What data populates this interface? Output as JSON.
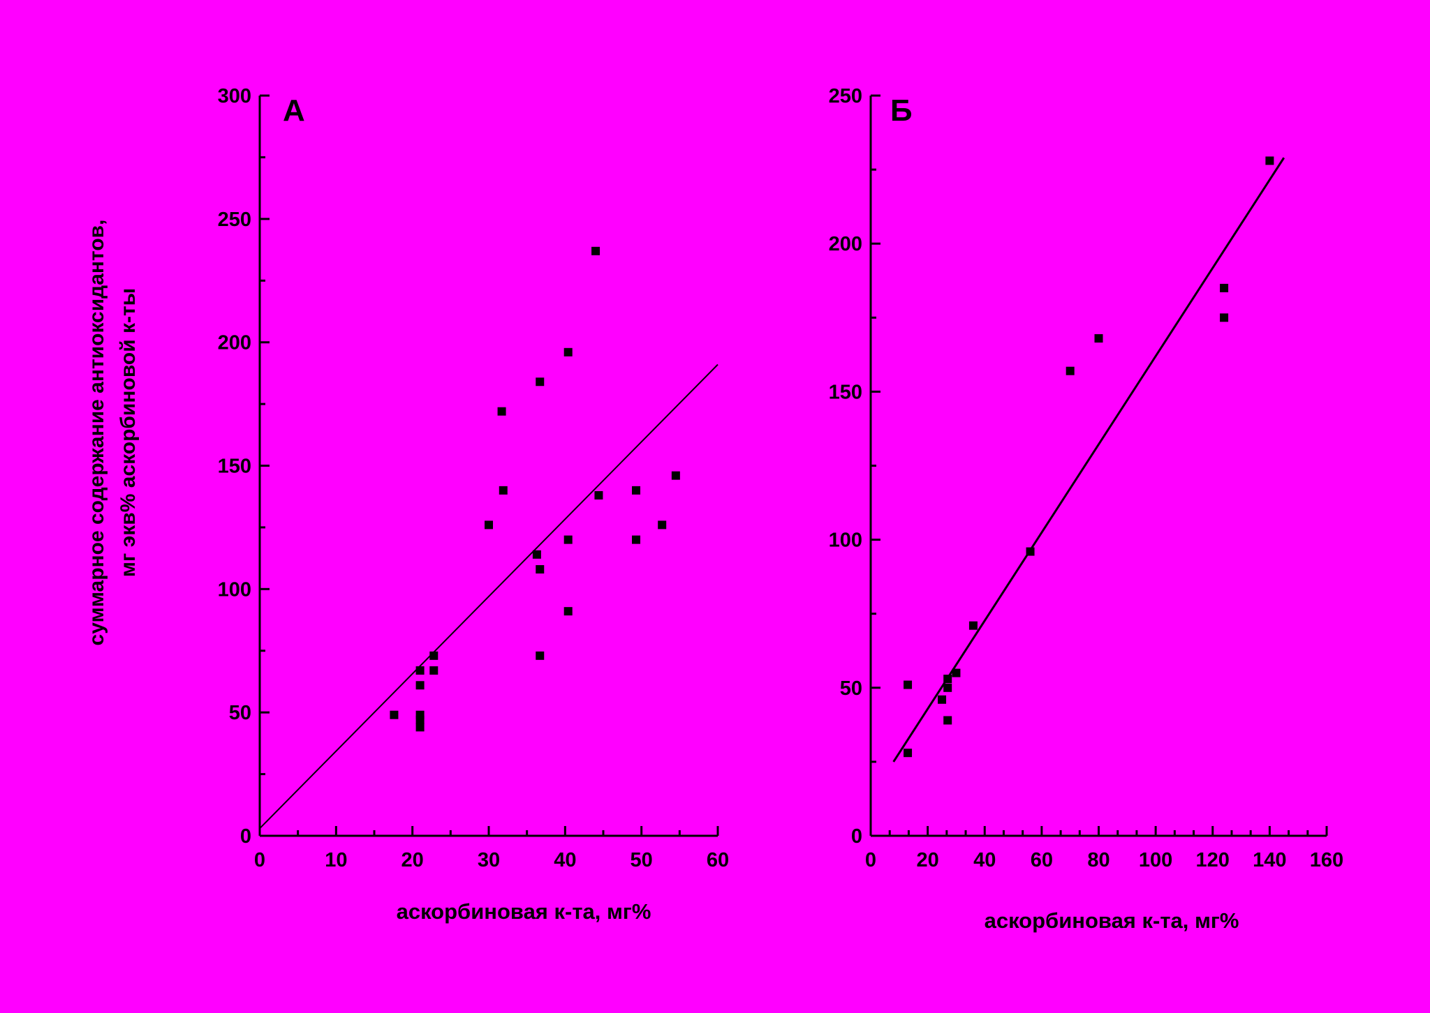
{
  "background_color": "#FF00FF",
  "ink_color": "#000000",
  "ylabel_line1": "суммарное содержание антиоксидантов,",
  "ylabel_line2": "мг экв% аскорбиновой к-ты",
  "chart_data": [
    {
      "type": "scatter",
      "panel_label": "А",
      "xlabel": "аскорбиновая к-та, мг%",
      "ylabel": "суммарное содержание антиоксидантов, мг экв% аскорбиновой к-ты",
      "xlim": [
        0,
        60
      ],
      "ylim": [
        0,
        300
      ],
      "x_ticks": [
        0,
        10,
        20,
        30,
        40,
        50,
        60
      ],
      "y_ticks": [
        0,
        50,
        100,
        150,
        200,
        250,
        300
      ],
      "grid": false,
      "points": [
        {
          "x": 17.6,
          "y": 49
        },
        {
          "x": 21.0,
          "y": 49
        },
        {
          "x": 21.0,
          "y": 47
        },
        {
          "x": 21.0,
          "y": 44
        },
        {
          "x": 21.0,
          "y": 61
        },
        {
          "x": 21.0,
          "y": 67
        },
        {
          "x": 22.8,
          "y": 73
        },
        {
          "x": 22.8,
          "y": 67
        },
        {
          "x": 30.0,
          "y": 126
        },
        {
          "x": 31.7,
          "y": 172
        },
        {
          "x": 31.9,
          "y": 140
        },
        {
          "x": 36.3,
          "y": 114
        },
        {
          "x": 36.7,
          "y": 184
        },
        {
          "x": 36.7,
          "y": 108
        },
        {
          "x": 36.7,
          "y": 73
        },
        {
          "x": 40.4,
          "y": 196
        },
        {
          "x": 40.4,
          "y": 120
        },
        {
          "x": 40.4,
          "y": 91
        },
        {
          "x": 44.0,
          "y": 237
        },
        {
          "x": 44.4,
          "y": 138
        },
        {
          "x": 49.3,
          "y": 140
        },
        {
          "x": 49.3,
          "y": 120
        },
        {
          "x": 52.7,
          "y": 126
        },
        {
          "x": 54.5,
          "y": 146
        }
      ],
      "fit_line": {
        "x": [
          0,
          60
        ],
        "y": [
          3,
          191
        ]
      }
    },
    {
      "type": "scatter",
      "panel_label": "Б",
      "xlabel": "аскорбиновая к-та, мг%",
      "xlim": [
        0,
        160
      ],
      "ylim": [
        0,
        250
      ],
      "x_ticks": [
        0,
        20,
        40,
        60,
        80,
        100,
        120,
        140,
        160
      ],
      "y_ticks": [
        0,
        50,
        100,
        150,
        200,
        250
      ],
      "grid": false,
      "points": [
        {
          "x": 13,
          "y": 51
        },
        {
          "x": 13,
          "y": 28
        },
        {
          "x": 25,
          "y": 46
        },
        {
          "x": 27,
          "y": 53
        },
        {
          "x": 27,
          "y": 50
        },
        {
          "x": 27,
          "y": 39
        },
        {
          "x": 30,
          "y": 55
        },
        {
          "x": 36,
          "y": 71
        },
        {
          "x": 56,
          "y": 96
        },
        {
          "x": 70,
          "y": 157
        },
        {
          "x": 80,
          "y": 168
        },
        {
          "x": 124,
          "y": 185
        },
        {
          "x": 124,
          "y": 175
        },
        {
          "x": 140,
          "y": 228
        }
      ],
      "fit_line": {
        "x": [
          8,
          145
        ],
        "y": [
          25,
          229
        ]
      }
    }
  ]
}
